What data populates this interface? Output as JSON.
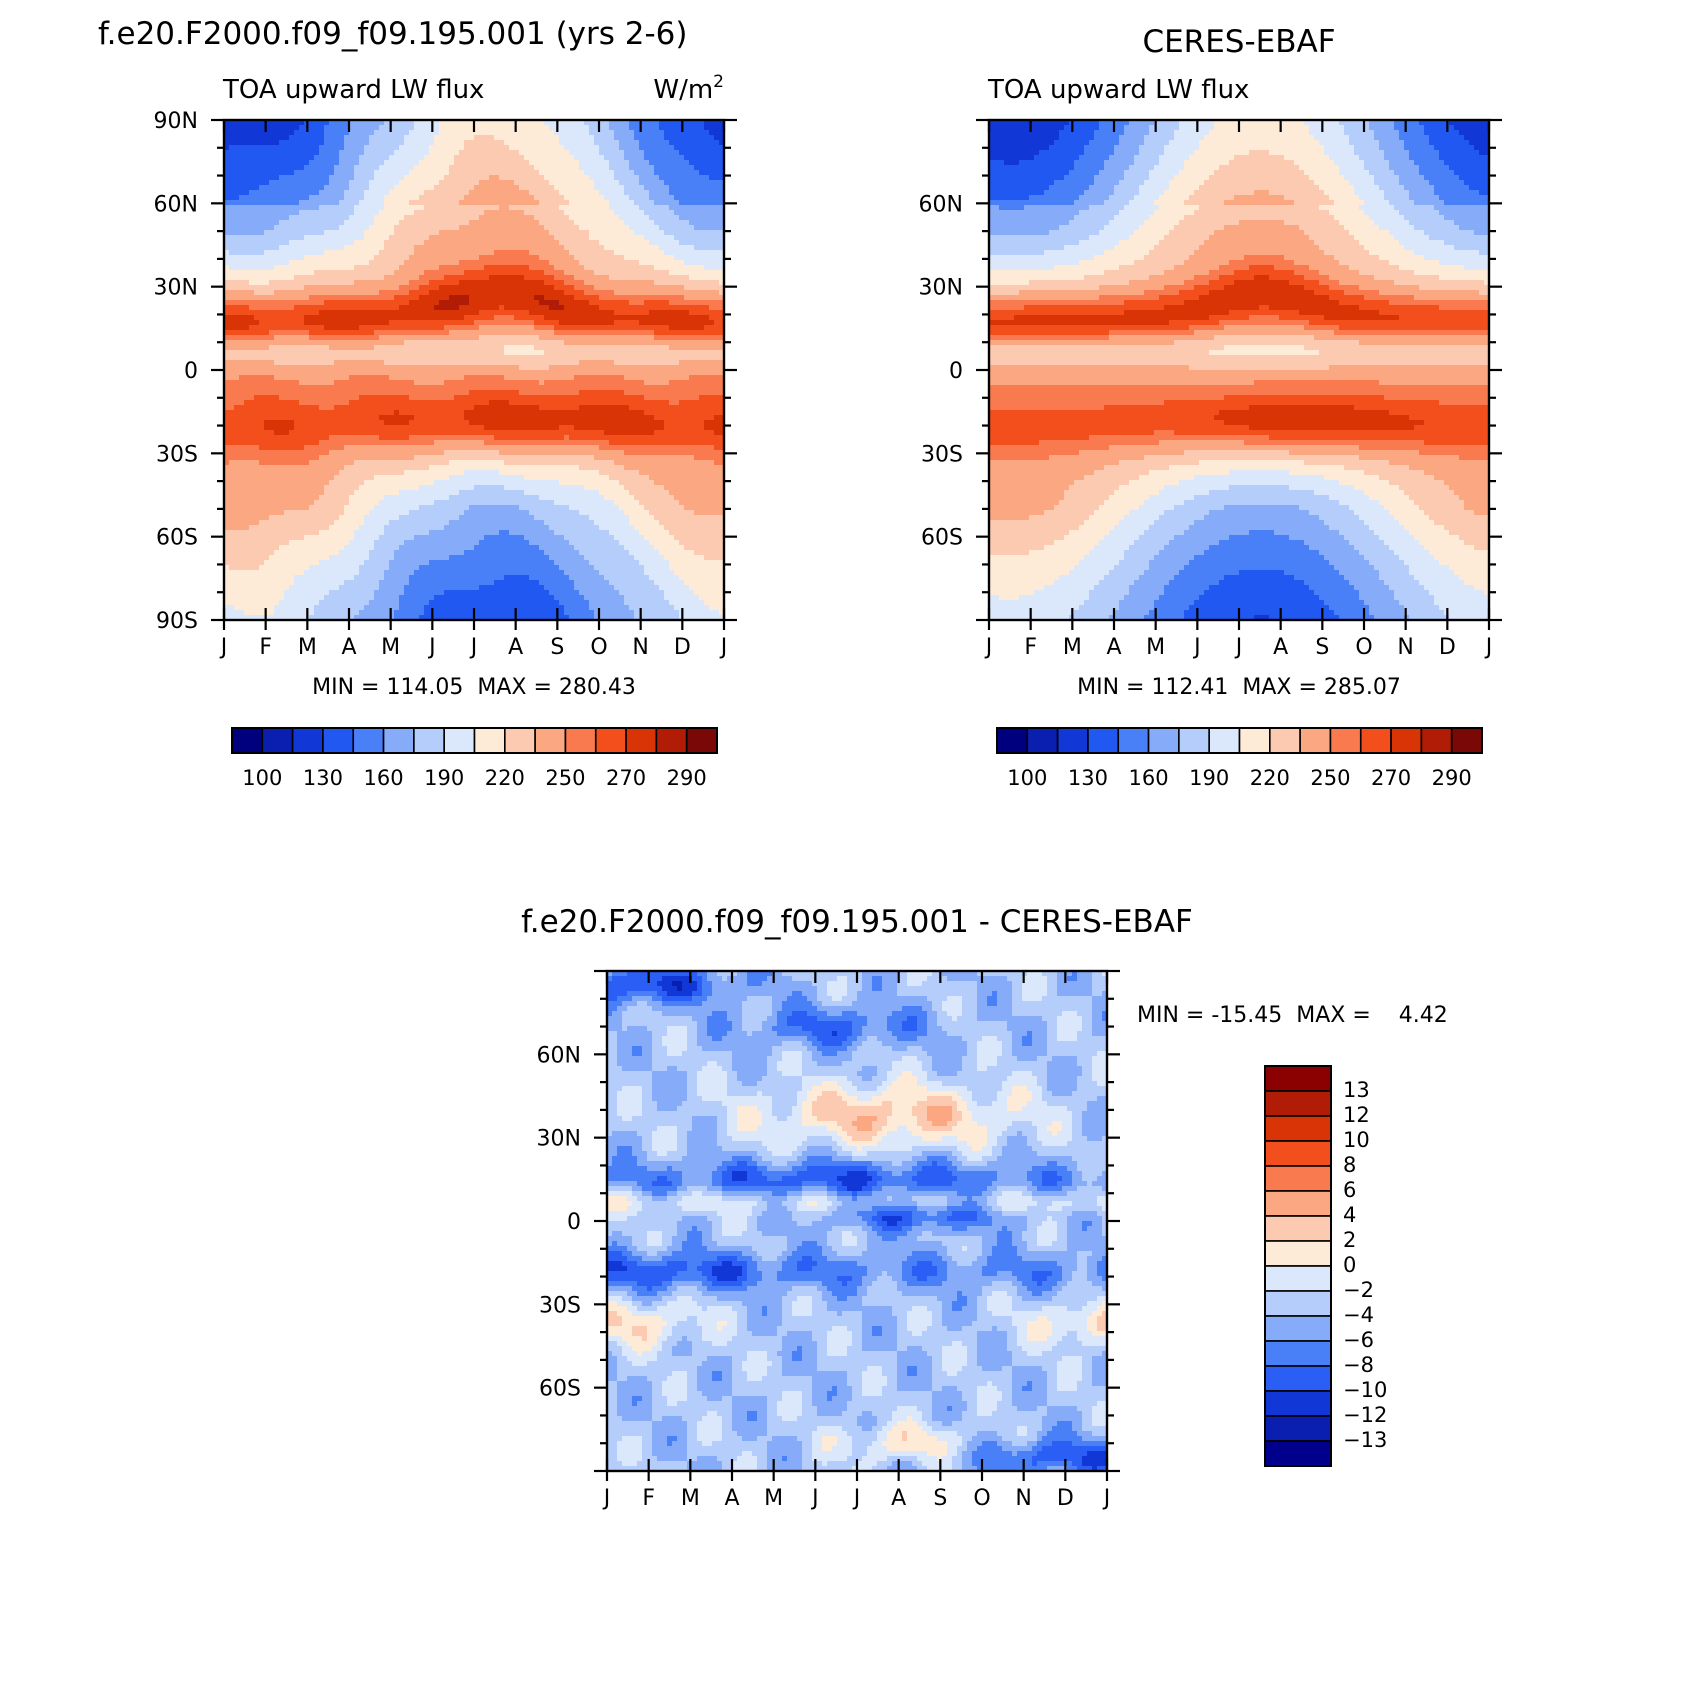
{
  "colors": {
    "abs_palette": [
      "#00007f",
      "#0a1fb0",
      "#1137d6",
      "#2258f2",
      "#4a80f7",
      "#86acf9",
      "#b5cdfb",
      "#dbe8fc",
      "#fdebd8",
      "#fccab0",
      "#fba882",
      "#f87a4e",
      "#f24f1d",
      "#d93406",
      "#b01c06",
      "#7a0806"
    ],
    "diff_palette": [
      "#00008c",
      "#0a1fb0",
      "#1137d6",
      "#2b5ef5",
      "#4a80f7",
      "#86acf9",
      "#b5cdfb",
      "#dbe8fc",
      "#fdebd8",
      "#fccab0",
      "#fba882",
      "#f87a4e",
      "#f24f1d",
      "#d93406",
      "#b01c06",
      "#8b0000"
    ]
  },
  "months": [
    "J",
    "F",
    "M",
    "A",
    "M",
    "J",
    "J",
    "A",
    "S",
    "O",
    "N",
    "D",
    "J"
  ],
  "panel_model": {
    "title": "f.e20.F2000.f09_f09.195.001 (yrs 2-6)",
    "left_string": "TOA upward LW flux",
    "units_base": "W/m",
    "units_sup": "2",
    "y_labels": [
      "90N",
      "60N",
      "30N",
      "0",
      "30S",
      "60S",
      "90S"
    ],
    "stats": "MIN = 114.05  MAX = 280.43",
    "colorbar_labels": [
      "100",
      "130",
      "160",
      "190",
      "220",
      "250",
      "270",
      "290"
    ]
  },
  "panel_obs": {
    "title": "CERES-EBAF",
    "left_string": "TOA upward LW flux",
    "y_labels": [
      "60N",
      "30N",
      "0",
      "30S",
      "60S"
    ],
    "stats": "MIN = 112.41  MAX = 285.07",
    "colorbar_labels": [
      "100",
      "130",
      "160",
      "190",
      "220",
      "250",
      "270",
      "290"
    ]
  },
  "panel_diff": {
    "title": "f.e20.F2000.f09_f09.195.001 - CERES-EBAF",
    "y_labels": [
      "60N",
      "30N",
      "0",
      "30S",
      "60S"
    ],
    "stats": "MIN = -15.45  MAX =    4.42",
    "colorbar_labels": [
      "13",
      "12",
      "10",
      "8",
      "6",
      "4",
      "2",
      "0",
      "-2",
      "-4",
      "-6",
      "-8",
      "-10",
      "-12",
      "-13"
    ]
  },
  "chart_data": [
    {
      "type": "heatmap",
      "title": "f.e20.F2000.f09_f09.195.001 (yrs 2-6)",
      "subtitle": "TOA upward LW flux",
      "units": "W/m2",
      "x_categories": [
        "J",
        "F",
        "M",
        "A",
        "M",
        "J",
        "J",
        "A",
        "S",
        "O",
        "N",
        "D",
        "J"
      ],
      "y_ticks": [
        "90N",
        "60N",
        "30N",
        "0",
        "30S",
        "60S",
        "90S"
      ],
      "ylim": [
        -90,
        90
      ],
      "min": 114.05,
      "max": 280.43,
      "levels": [
        100,
        115,
        130,
        145,
        160,
        175,
        190,
        205,
        220,
        235,
        250,
        260,
        270,
        280,
        290
      ],
      "colorbar_labels": [
        "100",
        "130",
        "160",
        "190",
        "220",
        "250",
        "270",
        "290"
      ],
      "grid": false
    },
    {
      "type": "heatmap",
      "title": "CERES-EBAF",
      "subtitle": "TOA upward LW flux",
      "x_categories": [
        "J",
        "F",
        "M",
        "A",
        "M",
        "J",
        "J",
        "A",
        "S",
        "O",
        "N",
        "D",
        "J"
      ],
      "y_ticks": [
        "60N",
        "30N",
        "0",
        "30S",
        "60S"
      ],
      "ylim": [
        -90,
        90
      ],
      "min": 112.41,
      "max": 285.07,
      "levels": [
        100,
        115,
        130,
        145,
        160,
        175,
        190,
        205,
        220,
        235,
        250,
        260,
        270,
        280,
        290
      ],
      "colorbar_labels": [
        "100",
        "130",
        "160",
        "190",
        "220",
        "250",
        "270",
        "290"
      ],
      "grid": false
    },
    {
      "type": "heatmap",
      "title": "f.e20.F2000.f09_f09.195.001 - CERES-EBAF",
      "x_categories": [
        "J",
        "F",
        "M",
        "A",
        "M",
        "J",
        "J",
        "A",
        "S",
        "O",
        "N",
        "D",
        "J"
      ],
      "y_ticks": [
        "60N",
        "30N",
        "0",
        "30S",
        "60S"
      ],
      "ylim": [
        -90,
        90
      ],
      "min": -15.45,
      "max": 4.42,
      "levels": [
        -13,
        -12,
        -10,
        -8,
        -6,
        -4,
        -2,
        0,
        2,
        4,
        6,
        8,
        10,
        12,
        13
      ],
      "colorbar_labels": [
        "13",
        "12",
        "10",
        "8",
        "6",
        "4",
        "2",
        "0",
        "-2",
        "-4",
        "-6",
        "-8",
        "-10",
        "-12",
        "-13"
      ],
      "grid": false
    }
  ]
}
